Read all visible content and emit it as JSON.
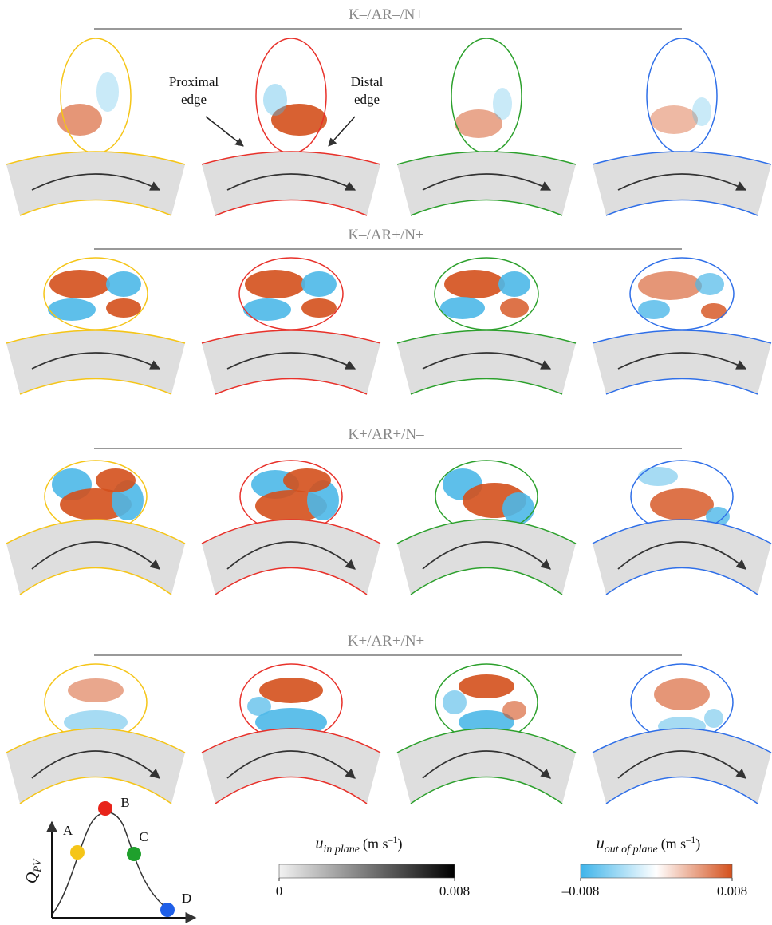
{
  "rows": [
    {
      "title": "K–/AR–/N+"
    },
    {
      "title": "K–/AR+/N+"
    },
    {
      "title": "K+/AR+/N–"
    },
    {
      "title": "K+/AR+/N+"
    }
  ],
  "annotations": [
    {
      "lines": [
        "Proximal",
        "edge"
      ]
    },
    {
      "lines": [
        "Distal",
        "edge"
      ]
    }
  ],
  "colorbars": [
    {
      "symbol": "u",
      "subscript": "in plane",
      "unit": "(m s",
      "unit_exp": "–1",
      "unit_close": ")",
      "range": [
        0,
        0.008
      ],
      "ticks": [
        0,
        0.008
      ]
    },
    {
      "symbol": "u",
      "subscript": "out of plane",
      "unit": "(m s",
      "unit_exp": "–1",
      "unit_close": ")",
      "range": [
        -0.008,
        0.008
      ],
      "ticks": [
        {
          "value": -0.008,
          "label": "–0.008"
        },
        0.008
      ]
    }
  ],
  "schematic": {
    "y_label": "Q",
    "y_sub": "PV",
    "points": [
      {
        "label": "A",
        "color": "#f5c518"
      },
      {
        "label": "B",
        "color": "#e8231a"
      },
      {
        "label": "C",
        "color": "#1fa02c"
      },
      {
        "label": "D",
        "color": "#1f5fe8"
      }
    ]
  }
}
